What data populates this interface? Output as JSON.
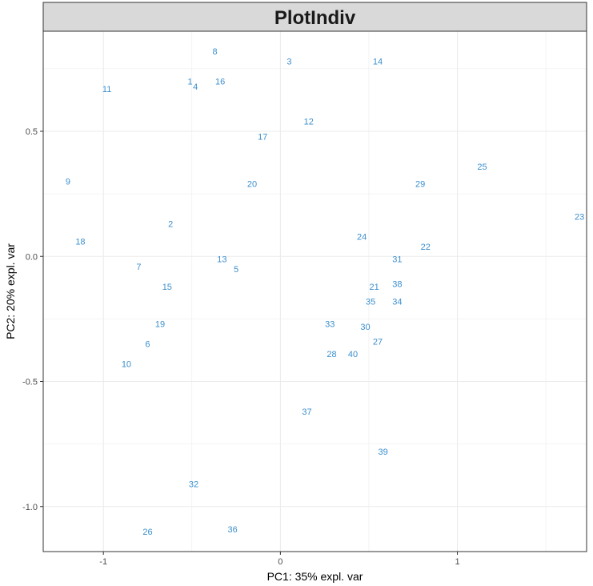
{
  "chart_data": {
    "type": "scatter",
    "title": "PlotIndiv",
    "xlabel": "PC1: 35% expl. var",
    "ylabel": "PC2: 20% expl. var",
    "xlim": [
      -1.34,
      1.73
    ],
    "ylim": [
      -1.18,
      0.9
    ],
    "x_ticks": [
      -1,
      0,
      1
    ],
    "x_tick_labels": [
      "-1",
      "0",
      "1"
    ],
    "y_ticks": [
      -1.0,
      -0.5,
      0.0,
      0.5
    ],
    "y_tick_labels": [
      "-1.0",
      "-0.5",
      "0.0",
      "0.5"
    ],
    "grid": true,
    "colors": {
      "point_label": "#3b8fcf",
      "panel_border": "#333333",
      "grid": "#ebebeb",
      "strip_fill": "#d9d9d9",
      "strip_border": "#333333"
    },
    "points": [
      {
        "label": "1",
        "x": -0.51,
        "y": 0.7
      },
      {
        "label": "2",
        "x": -0.62,
        "y": 0.13
      },
      {
        "label": "3",
        "x": 0.05,
        "y": 0.78
      },
      {
        "label": "4",
        "x": -0.48,
        "y": 0.68
      },
      {
        "label": "5",
        "x": -0.25,
        "y": -0.05
      },
      {
        "label": "6",
        "x": -0.75,
        "y": -0.35
      },
      {
        "label": "7",
        "x": -0.8,
        "y": -0.04
      },
      {
        "label": "8",
        "x": -0.37,
        "y": 0.82
      },
      {
        "label": "9",
        "x": -1.2,
        "y": 0.3
      },
      {
        "label": "10",
        "x": -0.87,
        "y": -0.43
      },
      {
        "label": "11",
        "x": -0.98,
        "y": 0.67
      },
      {
        "label": "12",
        "x": 0.16,
        "y": 0.54
      },
      {
        "label": "13",
        "x": -0.33,
        "y": -0.01
      },
      {
        "label": "14",
        "x": 0.55,
        "y": 0.78
      },
      {
        "label": "15",
        "x": -0.64,
        "y": -0.12
      },
      {
        "label": "16",
        "x": -0.34,
        "y": 0.7
      },
      {
        "label": "17",
        "x": -0.1,
        "y": 0.48
      },
      {
        "label": "18",
        "x": -1.13,
        "y": 0.06
      },
      {
        "label": "19",
        "x": -0.68,
        "y": -0.27
      },
      {
        "label": "20",
        "x": -0.16,
        "y": 0.29
      },
      {
        "label": "21",
        "x": 0.53,
        "y": -0.12
      },
      {
        "label": "22",
        "x": 0.82,
        "y": 0.04
      },
      {
        "label": "23",
        "x": 1.69,
        "y": 0.16
      },
      {
        "label": "24",
        "x": 0.46,
        "y": 0.08
      },
      {
        "label": "25",
        "x": 1.14,
        "y": 0.36
      },
      {
        "label": "26",
        "x": -0.75,
        "y": -1.1
      },
      {
        "label": "27",
        "x": 0.55,
        "y": -0.34
      },
      {
        "label": "28",
        "x": 0.29,
        "y": -0.39
      },
      {
        "label": "29",
        "x": 0.79,
        "y": 0.29
      },
      {
        "label": "30",
        "x": 0.48,
        "y": -0.28
      },
      {
        "label": "31",
        "x": 0.66,
        "y": -0.01
      },
      {
        "label": "32",
        "x": -0.49,
        "y": -0.91
      },
      {
        "label": "33",
        "x": 0.28,
        "y": -0.27
      },
      {
        "label": "34",
        "x": 0.66,
        "y": -0.18
      },
      {
        "label": "35",
        "x": 0.51,
        "y": -0.18
      },
      {
        "label": "36",
        "x": -0.27,
        "y": -1.09
      },
      {
        "label": "37",
        "x": 0.15,
        "y": -0.62
      },
      {
        "label": "38",
        "x": 0.66,
        "y": -0.11
      },
      {
        "label": "39",
        "x": 0.58,
        "y": -0.78
      },
      {
        "label": "40",
        "x": 0.41,
        "y": -0.39
      }
    ]
  }
}
